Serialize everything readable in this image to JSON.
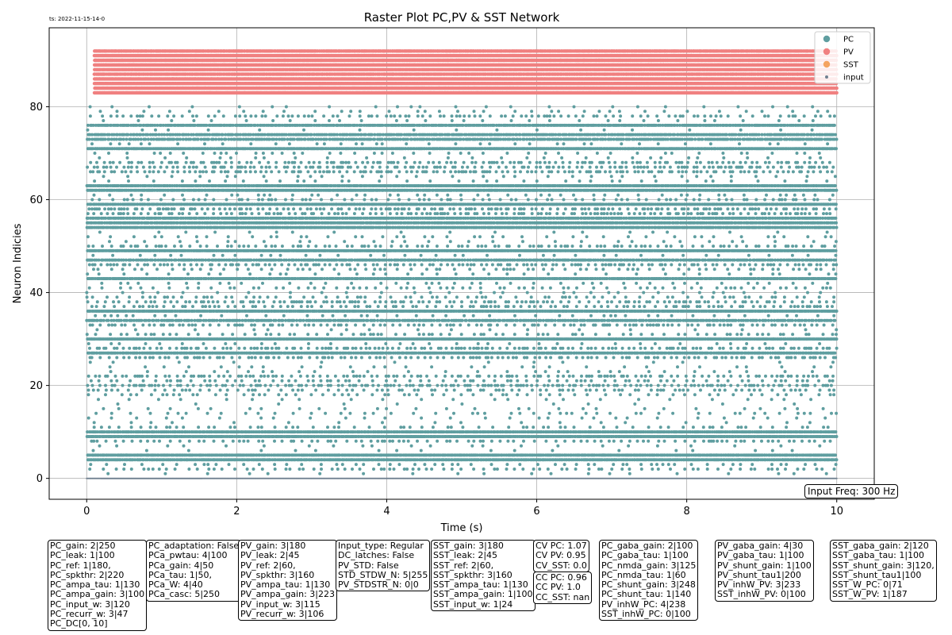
{
  "timestamp": "ts: 2022-11-15-14-0",
  "input_freq": "Input Freq: 300 Hz",
  "chart_data": {
    "type": "scatter",
    "title": "Raster Plot PC,PV & SST Network",
    "xlabel": "Time (s)",
    "ylabel": "Neuron Indicies",
    "xlim": [
      -0.5,
      10.5
    ],
    "ylim": [
      -4.5,
      97
    ],
    "xticks": [
      "0",
      "2",
      "4",
      "6",
      "8",
      "10"
    ],
    "yticks": [
      "0",
      "20",
      "40",
      "60",
      "80"
    ],
    "grid": true,
    "legend_position": "top-right",
    "series": [
      {
        "name": "PC",
        "color": "#5f9ea0",
        "neurons": [
          1,
          80
        ],
        "t_range": [
          0,
          10
        ]
      },
      {
        "name": "PV",
        "color": "#f08080",
        "neurons": [
          83,
          92
        ],
        "t_range": [
          0.1,
          10
        ]
      },
      {
        "name": "SST",
        "color": "#f4a460",
        "neurons": [],
        "t_range": [
          0,
          10
        ]
      },
      {
        "name": "input",
        "color": "#708090",
        "neurons": [
          0
        ],
        "t_range": [
          0,
          10
        ]
      }
    ]
  },
  "param_boxes": [
    [
      "PC_gain: 2|250",
      "PC_leak: 1|100",
      "PC_ref: 1|180,",
      "PC_spkthr: 2|220",
      "PC_ampa_tau: 1|130",
      "PC_ampa_gain: 3|100",
      "PC_input_w: 3|120",
      "PC_recurr_w: 3|47",
      "PC_DC[0, 10]"
    ],
    [
      "PC_adaptation: False",
      "PCa_pwtau: 4|100",
      "PCa_gain: 4|50",
      "PCa_tau: 1|50,",
      "PCa_W: 4|40",
      "PCa_casc: 5|250"
    ],
    [
      "PV_gain: 3|180",
      "PV_leak: 2|45",
      "PV_ref: 2|60,",
      "PV_spkthr: 3|160",
      "PV_ampa_tau: 1|130",
      "PV_ampa_gain: 3|223",
      "PV_input_w: 3|115",
      "PV_recurr_w: 3|106"
    ],
    [
      "Input_type: Regular",
      "DC_latches: False",
      "PV_STD: False",
      "STD_STDW_N: 5|255",
      "PV_STDSTR_N: 0|0"
    ],
    [
      "SST_gain: 3|180",
      "SST_leak: 2|45",
      "SST_ref: 2|60,",
      "SST_spkthr: 3|160",
      "SST_ampa_tau: 1|130",
      "SST_ampa_gain: 1|100",
      "SST_input_w: 1|24"
    ],
    [
      "CV PC: 1.07",
      "CV PV: 0.95",
      "CV_SST: 0.0"
    ],
    [
      "CC PC: 0.96",
      "CC PV: 1.0",
      "CC_SST: nan"
    ],
    [
      "PC_gaba_gain: 2|100",
      "PC_gaba_tau: 1|100",
      "PC_nmda_gain: 3|125",
      "PC_nmda_tau: 1|60",
      "PC_shunt_gain: 3|248",
      "PC_shunt_tau: 1|140",
      "PV_inhW_PC: 4|238",
      "SST_inhW_PC: 0|100"
    ],
    [
      "PV_gaba_gain: 4|30",
      "PV_gaba_tau: 1|100",
      "PV_shunt_gain: 1|100",
      "PV_shunt_tau1|200",
      "PV_inhW_PV: 3|233",
      "SST_inhW_PV: 0|100"
    ],
    [
      "SST_gaba_gain: 2|120",
      "SST_gaba_tau: 1|100",
      "SST_shunt_gain: 3|120,",
      "SST_shunt_tau1|100",
      "SST_W_PC: 0|71",
      "SST_W_PV: 1|187"
    ]
  ]
}
